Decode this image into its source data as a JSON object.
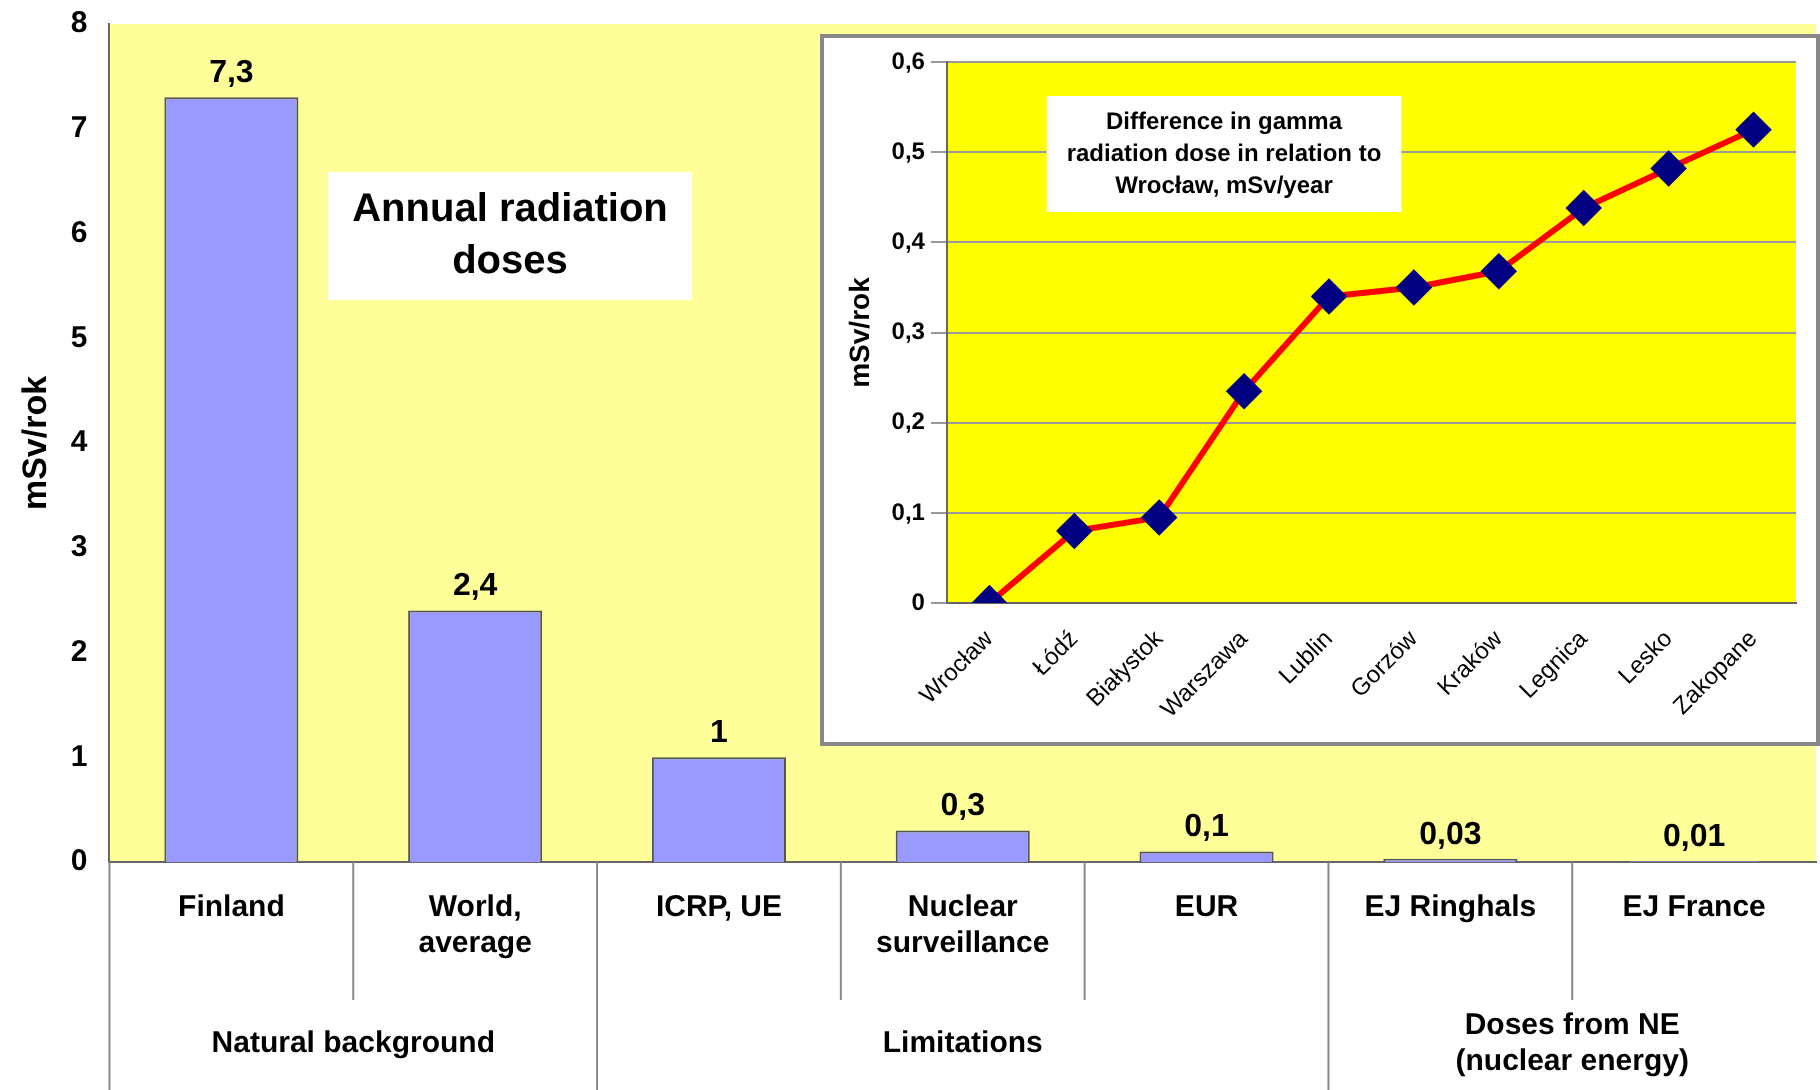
{
  "chart_data": [
    {
      "type": "bar",
      "title": "Annual radiation doses",
      "ylabel": "mSv/rok",
      "categories": [
        "Finland",
        "World, average",
        "ICRP, UE",
        "Nuclear surveillance",
        "EUR",
        "EJ Ringhals",
        "EJ France"
      ],
      "values": [
        7.3,
        2.4,
        1,
        0.3,
        0.1,
        0.03,
        0.01
      ],
      "value_labels": [
        "7,3",
        "2,4",
        "1",
        "0,3",
        "0,1",
        "0,03",
        "0,01"
      ],
      "color": "#9999ff",
      "ylim": [
        0,
        8
      ],
      "yticks": [
        0,
        1,
        2,
        3,
        4,
        5,
        6,
        7,
        8
      ],
      "grid": false,
      "legend": false,
      "annotations": [
        "Natural background",
        "Limitations",
        "Doses from NE (nuclear energy)"
      ]
    },
    {
      "type": "line",
      "title": "Difference in gamma radiation dose in relation to Wrocław, mSv/year",
      "ylabel": "mSv/rok",
      "categories": [
        "Wrocław",
        "Łódź",
        "Białystok",
        "Warszawa",
        "Lublin",
        "Gorzów",
        "Kraków",
        "Legnica",
        "Lesko",
        "Zakopane"
      ],
      "series": [
        {
          "color": "#ff0000",
          "values": [
            0,
            0.08,
            0.095,
            0.235,
            0.34,
            0.35,
            0.368,
            0.438,
            0.482,
            0.525
          ]
        }
      ],
      "marker": "diamond",
      "line_style": "solid",
      "ylim": [
        0,
        0.6
      ],
      "yticks": [
        0,
        {
          "value": 0.1,
          "label": "0,1"
        },
        {
          "value": 0.2,
          "label": "0,2"
        },
        {
          "value": 0.3,
          "label": "0,3"
        },
        {
          "value": 0.4,
          "label": "0,4"
        },
        {
          "value": 0.5,
          "label": "0,5"
        },
        {
          "value": 0.6,
          "label": "0,6"
        }
      ],
      "grid": "y",
      "legend": false
    }
  ]
}
